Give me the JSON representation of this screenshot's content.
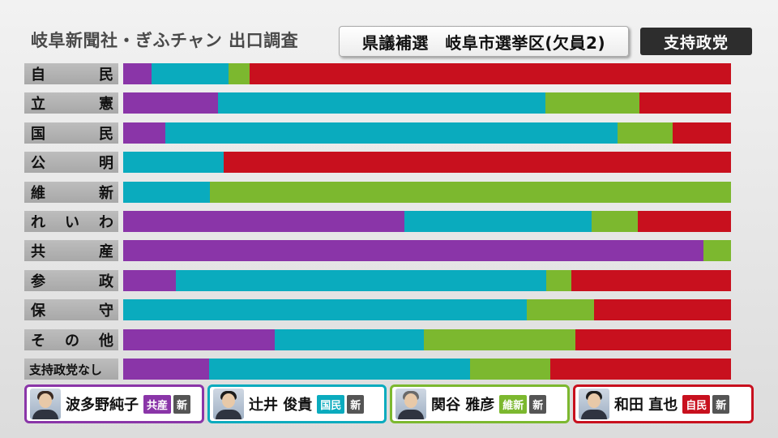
{
  "header": {
    "source": "岐阜新聞社・ぎふチャン 出口調査",
    "election": "県議補選　岐阜市選挙区(欠員2)",
    "subject": "支持政党"
  },
  "colors": {
    "kyosan": "#8a35a8",
    "kokumin": "#0aabbe",
    "ishin": "#7cb82f",
    "jimin": "#c8101e"
  },
  "chart_data": {
    "type": "bar",
    "stacked": true,
    "orientation": "horizontal",
    "normalized": true,
    "categories": [
      {
        "label": "自民",
        "chars": [
          "自",
          "民"
        ]
      },
      {
        "label": "立憲",
        "chars": [
          "立",
          "憲"
        ]
      },
      {
        "label": "国民",
        "chars": [
          "国",
          "民"
        ]
      },
      {
        "label": "公明",
        "chars": [
          "公",
          "明"
        ]
      },
      {
        "label": "維新",
        "chars": [
          "維",
          "新"
        ]
      },
      {
        "label": "れいわ",
        "chars": [
          "れ",
          "い",
          "わ"
        ]
      },
      {
        "label": "共産",
        "chars": [
          "共",
          "産"
        ]
      },
      {
        "label": "参政",
        "chars": [
          "参",
          "政"
        ]
      },
      {
        "label": "保守",
        "chars": [
          "保",
          "守"
        ]
      },
      {
        "label": "その他",
        "chars": [
          "そ",
          "の",
          "他"
        ]
      },
      {
        "label": "支持政党なし",
        "chars": [
          "支持政党なし"
        ]
      }
    ],
    "series": [
      {
        "name": "波多野純子",
        "color": "#8a35a8",
        "values": [
          4.7,
          15.6,
          6.9,
          0.0,
          0.0,
          46.3,
          95.4,
          8.6,
          0.0,
          24.9,
          14.1
        ]
      },
      {
        "name": "辻井俊貴",
        "color": "#0aabbe",
        "values": [
          12.6,
          53.9,
          74.4,
          16.5,
          14.3,
          30.7,
          0.0,
          61.0,
          66.4,
          24.5,
          43.0
        ]
      },
      {
        "name": "関谷雅彦",
        "color": "#7cb82f",
        "values": [
          3.5,
          15.4,
          9.1,
          0.0,
          85.7,
          7.6,
          4.6,
          4.2,
          11.1,
          25.0,
          13.2
        ]
      },
      {
        "name": "和田直也",
        "color": "#c8101e",
        "values": [
          79.2,
          15.1,
          9.6,
          83.5,
          0.0,
          15.4,
          0.0,
          26.2,
          22.5,
          25.6,
          29.7
        ]
      }
    ]
  },
  "legend": [
    {
      "name": "波多野純子",
      "party": "共産",
      "status": "新",
      "color": "#8a35a8",
      "hair": "#3a2a22"
    },
    {
      "name": "辻井 俊貴",
      "party": "国民",
      "status": "新",
      "color": "#0aabbe",
      "hair": "#1c1c1c"
    },
    {
      "name": "関谷 雅彦",
      "party": "維新",
      "status": "新",
      "color": "#7cb82f",
      "hair": "#6a6a6a"
    },
    {
      "name": "和田 直也",
      "party": "自民",
      "status": "新",
      "color": "#c8101e",
      "hair": "#1c1c1c"
    }
  ]
}
